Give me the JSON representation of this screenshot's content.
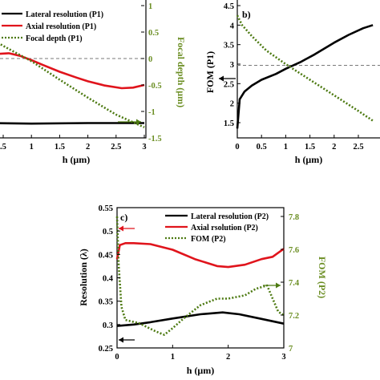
{
  "colors": {
    "lateral": "#000000",
    "axial": "#e0141c",
    "green": "#4d7a12",
    "green_axis": "#6b8e23",
    "dashed": "#7a7a7a"
  },
  "chart_data": [
    {
      "panel": "a",
      "type": "line",
      "xlabel": "h (μm)",
      "xticks": [
        ".5",
        "1",
        "1.5",
        "2",
        "2.5",
        "3"
      ],
      "xlim": [
        0.3,
        3
      ],
      "y2label": "Focal depth (μm)",
      "y2lim": [
        -1.5,
        1
      ],
      "y2ticks": [
        "1",
        "0.5",
        "0",
        "-0.5",
        "-1",
        "-1.5"
      ],
      "legend": [
        "Lateral resolution (P1)",
        "Axial resolution (P1)",
        "Focal depth (P1)"
      ],
      "series": [
        {
          "name": "Lateral resolution (P1)",
          "axis": "y2",
          "style": "solid",
          "x": [
            0.3,
            1.0,
            2.0,
            3.0
          ],
          "y": [
            -1.22,
            -1.23,
            -1.22,
            -1.22
          ]
        },
        {
          "name": "Axial resolution (P1)",
          "axis": "y2",
          "style": "solid",
          "x": [
            0.3,
            0.6,
            0.8,
            1.0,
            1.2,
            1.5,
            1.8,
            2.0,
            2.3,
            2.6,
            2.8,
            3.0
          ],
          "y": [
            0.08,
            0.1,
            0.05,
            -0.03,
            -0.12,
            -0.25,
            -0.36,
            -0.43,
            -0.51,
            -0.56,
            -0.55,
            -0.5
          ]
        },
        {
          "name": "Focal depth (P1)",
          "axis": "y2",
          "style": "dotted",
          "x": [
            0.3,
            0.6,
            1.0,
            1.5,
            2.0,
            2.5,
            3.0
          ],
          "y": [
            0.36,
            0.18,
            -0.05,
            -0.4,
            -0.74,
            -1.06,
            -1.3
          ]
        }
      ],
      "hline_y2": 0
    },
    {
      "panel": "b",
      "type": "line",
      "panel_label": "b)",
      "xlabel": "h (μm)",
      "xticks": [
        "0",
        "0.5",
        "1",
        "1.5",
        "2",
        "2.5"
      ],
      "xlim": [
        0,
        2.8
      ],
      "ylabel": "FOM (P1)",
      "ylim": [
        1.3,
        4.5
      ],
      "yticks": [
        "4.5",
        "4",
        "3.5",
        "3",
        "2.5",
        "2",
        "1.5"
      ],
      "series": [
        {
          "name": "FOM (P1)",
          "style": "solid",
          "x": [
            0,
            0.05,
            0.15,
            0.3,
            0.5,
            0.8,
            1.0,
            1.3,
            1.6,
            2.0,
            2.3,
            2.6,
            2.8
          ],
          "y": [
            1.35,
            2.1,
            2.3,
            2.45,
            2.6,
            2.75,
            2.88,
            3.05,
            3.25,
            3.55,
            3.75,
            3.92,
            4.0
          ]
        },
        {
          "name": "",
          "style": "dotted",
          "x": [
            0,
            0.1,
            0.3,
            0.6,
            1.0,
            1.5,
            2.0,
            2.5,
            2.8
          ],
          "y": [
            4.25,
            4.0,
            3.72,
            3.35,
            3.0,
            2.6,
            2.2,
            1.8,
            1.55
          ]
        }
      ],
      "hline_y": 2.97
    },
    {
      "panel": "c",
      "type": "line",
      "panel_label": "c)",
      "xlabel": "h (μm)",
      "xticks": [
        "0",
        "1",
        "2",
        "3"
      ],
      "xlim": [
        0,
        3
      ],
      "ylabel": "Resolution (λ)",
      "ylim": [
        0.25,
        0.55
      ],
      "yticks": [
        "0.55",
        "0.5",
        "0.45",
        "0.4",
        "0.35",
        "0.3",
        "0.25"
      ],
      "y2label": "FOM (P2)",
      "y2lim": [
        7,
        7.85
      ],
      "y2ticks": [
        "7.8",
        "7.6",
        "7.4",
        "7.2",
        "7"
      ],
      "legend": [
        "Lateral resolution (P2)",
        "Axial rsolution (P2)",
        "FOM (P2)"
      ],
      "series": [
        {
          "name": "Lateral resolution (P2)",
          "axis": "y",
          "style": "solid",
          "x": [
            0,
            0.3,
            0.6,
            1.0,
            1.5,
            1.9,
            2.2,
            2.6,
            3.0
          ],
          "y": [
            0.297,
            0.3,
            0.305,
            0.313,
            0.322,
            0.326,
            0.322,
            0.312,
            0.302
          ]
        },
        {
          "name": "Axial rsolution (P2)",
          "axis": "y",
          "style": "solid",
          "x": [
            0,
            0.05,
            0.15,
            0.3,
            0.6,
            1.0,
            1.4,
            1.8,
            2.0,
            2.3,
            2.6,
            2.8,
            3.0
          ],
          "y": [
            0.44,
            0.47,
            0.474,
            0.474,
            0.472,
            0.46,
            0.44,
            0.425,
            0.423,
            0.428,
            0.44,
            0.445,
            0.462
          ]
        },
        {
          "name": "FOM (P2)",
          "axis": "y2",
          "style": "dotted",
          "x": [
            0,
            0.03,
            0.08,
            0.15,
            0.4,
            0.7,
            0.85,
            1.0,
            1.2,
            1.5,
            1.8,
            2.0,
            2.3,
            2.5,
            2.7,
            2.8,
            2.9,
            3.0
          ],
          "y": [
            7.8,
            7.5,
            7.25,
            7.17,
            7.15,
            7.1,
            7.08,
            7.12,
            7.18,
            7.26,
            7.3,
            7.3,
            7.32,
            7.36,
            7.38,
            7.3,
            7.22,
            7.2
          ]
        }
      ]
    }
  ]
}
